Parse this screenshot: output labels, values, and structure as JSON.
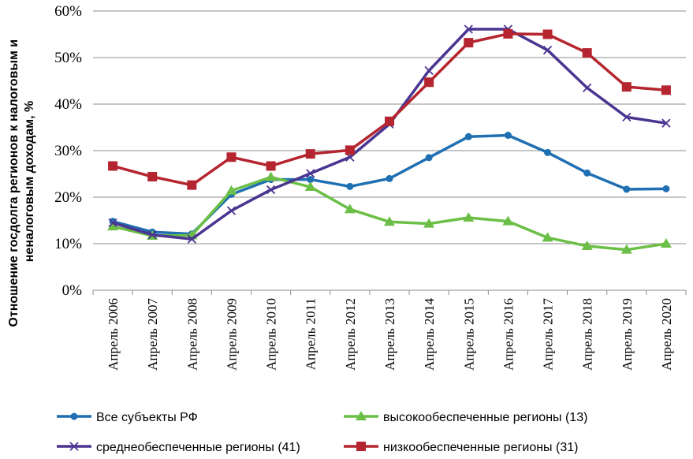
{
  "chart_data": {
    "type": "line",
    "title": "",
    "xlabel": "",
    "ylabel_lines": [
      "Отношение госдолга регионов к налоговым и",
      "неналоговым доходам, %"
    ],
    "categories": [
      "Апрель 2006",
      "Апрель 2007",
      "Апрель 2008",
      "Апрель 2009",
      "Апрель 2010",
      "Апрель 2011",
      "Апрель 2012",
      "Апрель 2013",
      "Апрель 2014",
      "Апрель 2015",
      "Апрель 2016",
      "Апрель 2017",
      "Апрель 2018",
      "Апрель 2019",
      "Апрель 2020"
    ],
    "y_ticks": [
      0,
      10,
      20,
      30,
      40,
      50,
      60
    ],
    "y_tick_labels": [
      "0%",
      "10%",
      "20%",
      "30%",
      "40%",
      "50%",
      "60%"
    ],
    "ylim": [
      0,
      60
    ],
    "grid": "horizontal",
    "legend_position": "bottom",
    "series": [
      {
        "name": "Все субъекты РФ",
        "color": "#1f6fb2",
        "marker": "circle",
        "values": [
          14.8,
          12.5,
          12.1,
          20.6,
          23.8,
          23.8,
          22.3,
          24.0,
          28.5,
          33.0,
          33.3,
          29.6,
          25.2,
          21.7,
          21.8
        ]
      },
      {
        "name": "высокообеспеченные регионы (13)",
        "color": "#6cbf46",
        "marker": "triangle",
        "values": [
          13.7,
          11.7,
          11.8,
          21.4,
          24.3,
          22.2,
          17.4,
          14.7,
          14.3,
          15.6,
          14.8,
          11.3,
          9.5,
          8.7,
          10.0
        ]
      },
      {
        "name": "среднеобеспеченные регионы (41)",
        "color": "#4a3591",
        "marker": "x",
        "values": [
          14.5,
          11.9,
          11.0,
          17.1,
          21.6,
          25.1,
          28.6,
          35.7,
          47.2,
          56.1,
          56.1,
          51.6,
          43.5,
          37.2,
          35.9
        ]
      },
      {
        "name": "низкообеспеченные регионы (31)",
        "color": "#b5252f",
        "marker": "square",
        "values": [
          26.7,
          24.4,
          22.6,
          28.6,
          26.7,
          29.3,
          30.1,
          36.3,
          44.7,
          53.2,
          55.1,
          55.0,
          51.0,
          43.7,
          43.0
        ]
      }
    ]
  }
}
